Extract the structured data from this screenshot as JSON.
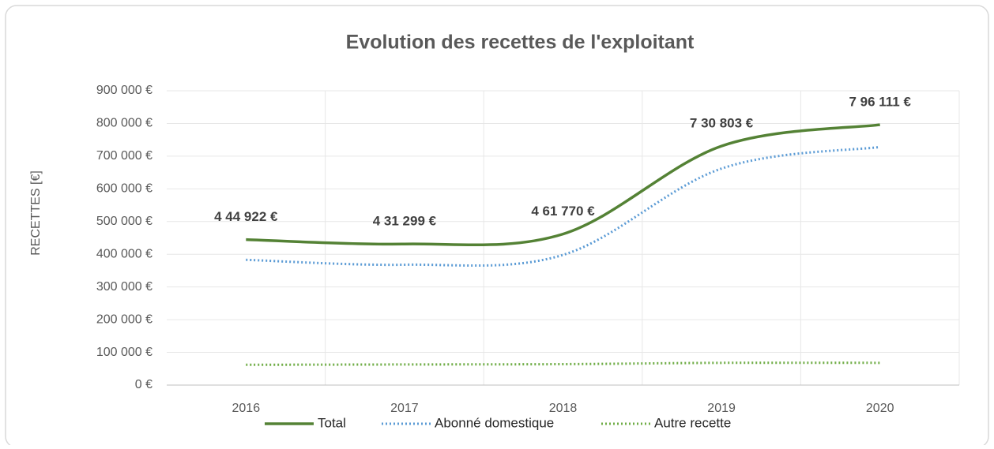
{
  "chart_data": {
    "type": "line",
    "title": "Evolution des recettes de l'exploitant",
    "y_label": "RECETTES [€]",
    "categories": [
      "2016",
      "2017",
      "2018",
      "2019",
      "2020"
    ],
    "series": [
      {
        "name": "Total",
        "color": "#548235",
        "style": "solid",
        "values": [
          444922,
          431299,
          461770,
          730803,
          796111
        ],
        "value_labels": [
          "4 44 922 €",
          "4 31 299 €",
          "4 61 770 €",
          "7 30 803 €",
          "7 96 111 €"
        ]
      },
      {
        "name": "Abonné domestique",
        "color": "#5b9bd5",
        "style": "dotted",
        "values": [
          383000,
          368000,
          398000,
          662000,
          728000
        ]
      },
      {
        "name": "Autre recette",
        "color": "#70ad47",
        "style": "dotted",
        "values": [
          62000,
          63000,
          64000,
          68000,
          68000
        ]
      }
    ],
    "ylim": [
      0,
      900000
    ],
    "yticks": [
      {
        "value": 0,
        "label": "0 €"
      },
      {
        "value": 100000,
        "label": "100 000 €"
      },
      {
        "value": 200000,
        "label": "200 000 €"
      },
      {
        "value": 300000,
        "label": "300 000 €"
      },
      {
        "value": 400000,
        "label": "400 000 €"
      },
      {
        "value": 500000,
        "label": "500 000 €"
      },
      {
        "value": 600000,
        "label": "600 000 €"
      },
      {
        "value": 700000,
        "label": "700 000 €"
      },
      {
        "value": 800000,
        "label": "800 000 €"
      },
      {
        "value": 900000,
        "label": "900 000 €"
      }
    ],
    "grid": true,
    "legend": "bottom"
  }
}
